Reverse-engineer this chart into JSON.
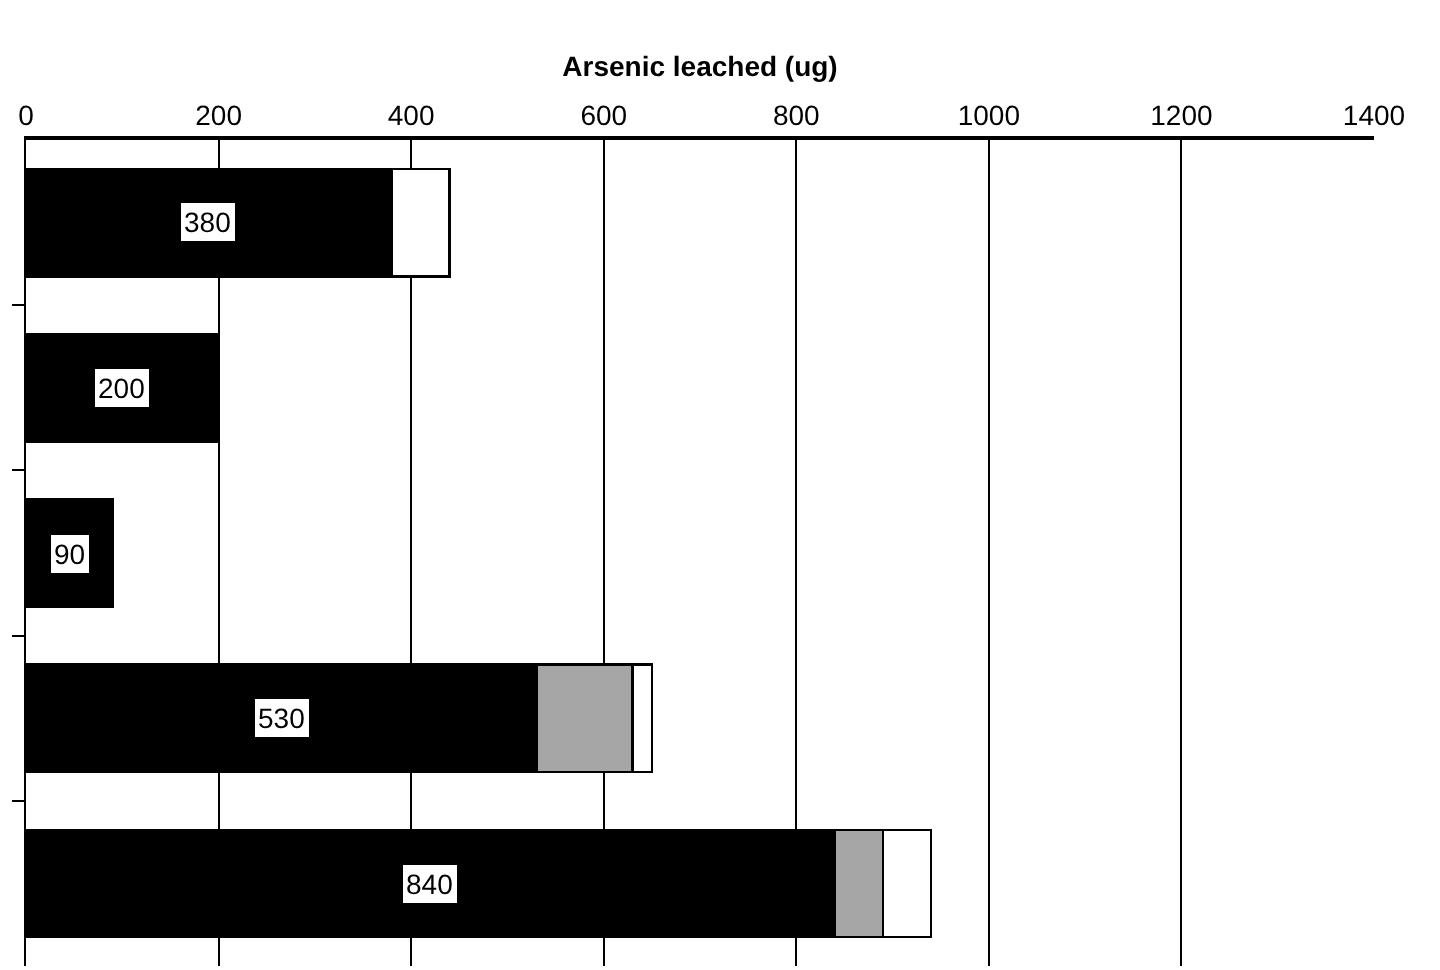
{
  "chart_data": {
    "type": "bar",
    "orientation": "horizontal",
    "stacked": true,
    "xlabel": "Arsenic leached (ug)",
    "categories": [
      null,
      null,
      null,
      null,
      null
    ],
    "series": [
      {
        "color": "#000000",
        "values": [
          380,
          200,
          90,
          530,
          840
        ],
        "value_labels": [
          "380",
          "200",
          "90",
          "530",
          "840"
        ]
      },
      {
        "color": "#a6a6a6",
        "values": [
          null,
          null,
          null,
          100,
          50
        ]
      },
      {
        "color": "#ffffff",
        "values": [
          60,
          null,
          null,
          20,
          50
        ]
      }
    ],
    "xlim": [
      0,
      1400
    ],
    "xticks": [
      0,
      200,
      400,
      600,
      800,
      1000,
      1200,
      1400
    ],
    "grid": "x",
    "tick_labels": "x"
  }
}
